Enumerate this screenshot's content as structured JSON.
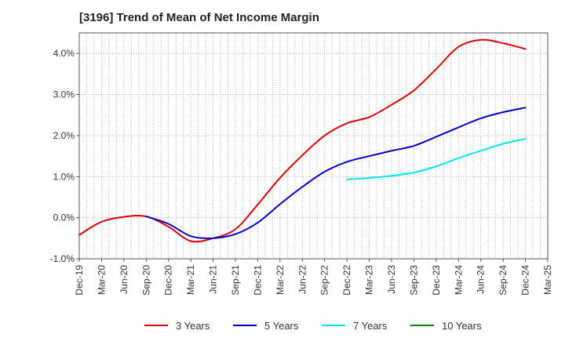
{
  "chart_data": {
    "type": "line",
    "title": "[3196]  Trend of Mean of Net Income Margin",
    "xlabel": "",
    "ylabel": "",
    "x": [
      "Dec-19",
      "Mar-20",
      "Jun-20",
      "Sep-20",
      "Dec-20",
      "Mar-21",
      "Jun-21",
      "Sep-21",
      "Dec-21",
      "Mar-22",
      "Jun-22",
      "Sep-22",
      "Dec-22",
      "Mar-23",
      "Jun-23",
      "Sep-23",
      "Dec-23",
      "Mar-24",
      "Jun-24",
      "Sep-24",
      "Dec-24",
      "Mar-25"
    ],
    "ylim": [
      -1.0,
      4.5
    ],
    "yticks": [
      -1.0,
      0.0,
      1.0,
      2.0,
      3.0,
      4.0
    ],
    "ytick_labels": [
      "-1.0%",
      "0.0%",
      "1.0%",
      "2.0%",
      "3.0%",
      "4.0%"
    ],
    "grid": true,
    "legend_position": "bottom",
    "series": [
      {
        "name": "3 Years",
        "color": "#dd0000",
        "values": [
          -0.42,
          -0.1,
          0.02,
          0.03,
          -0.22,
          -0.57,
          -0.5,
          -0.28,
          0.32,
          0.97,
          1.52,
          2.0,
          2.3,
          2.45,
          2.75,
          3.1,
          3.62,
          4.16,
          4.33,
          4.25,
          4.11,
          null
        ]
      },
      {
        "name": "5 Years",
        "color": "#0000cc",
        "values": [
          null,
          null,
          null,
          0.03,
          -0.15,
          -0.45,
          -0.5,
          -0.4,
          -0.12,
          0.33,
          0.75,
          1.12,
          1.36,
          1.5,
          1.63,
          1.75,
          1.97,
          2.2,
          2.42,
          2.57,
          2.68,
          null
        ]
      },
      {
        "name": "7 Years",
        "color": "#00e5ee",
        "values": [
          null,
          null,
          null,
          null,
          null,
          null,
          null,
          null,
          null,
          null,
          null,
          null,
          0.93,
          0.97,
          1.02,
          1.1,
          1.25,
          1.45,
          1.63,
          1.8,
          1.92,
          null
        ]
      },
      {
        "name": "10 Years",
        "color": "#008800",
        "values": [
          null,
          null,
          null,
          null,
          null,
          null,
          null,
          null,
          null,
          null,
          null,
          null,
          null,
          null,
          null,
          null,
          null,
          null,
          null,
          null,
          null,
          null
        ]
      }
    ]
  }
}
